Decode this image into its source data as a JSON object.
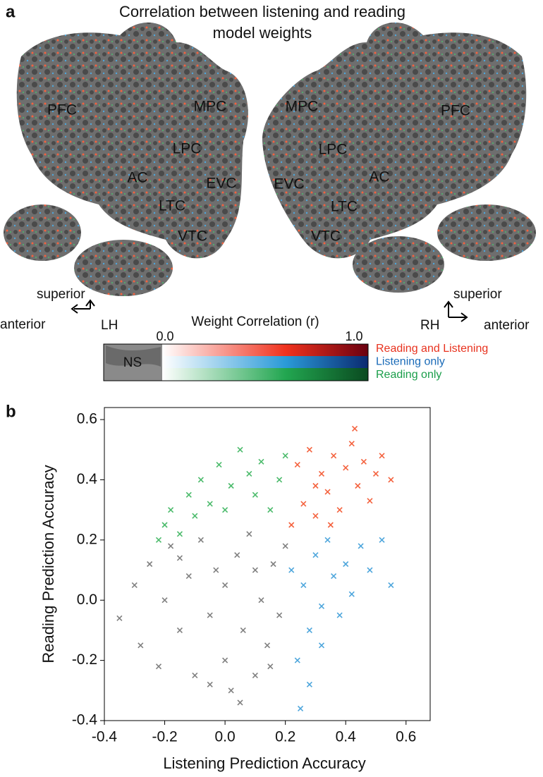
{
  "figure": {
    "panel_a": {
      "letter": "a",
      "title_lines": [
        "Correlation between listening and reading",
        "model weights"
      ],
      "left_hemisphere": {
        "regions": [
          "PFC",
          "MPC",
          "LPC",
          "AC",
          "EVC",
          "LTC",
          "VTC"
        ],
        "superior": "superior",
        "anterior": "anterior",
        "side": "LH"
      },
      "right_hemisphere": {
        "regions": [
          "MPC",
          "PFC",
          "LPC",
          "AC",
          "EVC",
          "LTC",
          "VTC"
        ],
        "superior": "superior",
        "anterior": "anterior",
        "side": "RH"
      },
      "colorbar": {
        "title": "Weight Correlation (r)",
        "min_label": "0.0",
        "max_label": "1.0",
        "ns_label": "NS",
        "legend": [
          {
            "name": "Reading and Listening",
            "color": "#e8321e"
          },
          {
            "name": "Listening only",
            "color": "#1a6bb8"
          },
          {
            "name": "Reading only",
            "color": "#1a9e4a"
          }
        ]
      }
    }
  },
  "chart_data": {
    "type": "scatter",
    "panel_label": "b",
    "x_label": "Listening Prediction Accuracy",
    "y_label": "Reading Prediction Accuracy",
    "xlim": [
      -0.4,
      0.68
    ],
    "ylim": [
      -0.4,
      0.64
    ],
    "xticks": [
      -0.4,
      -0.2,
      {
        "value": 0,
        "label": "0.0"
      },
      0.2,
      0.4,
      0.6
    ],
    "yticks": [
      -0.4,
      -0.2,
      {
        "value": 0,
        "label": "0.0"
      },
      0.2,
      0.4,
      0.6
    ],
    "series": [
      {
        "color": "#808080",
        "x": [
          -0.35,
          -0.3,
          -0.28,
          -0.25,
          -0.22,
          -0.2,
          -0.18,
          -0.15,
          -0.12,
          -0.1,
          -0.08,
          -0.05,
          -0.03,
          0.0,
          0.0,
          0.02,
          0.04,
          0.06,
          0.08,
          0.1,
          0.12,
          0.14,
          0.16,
          0.18,
          0.2,
          0.05,
          -0.05,
          0.15,
          -0.15,
          0.1
        ],
        "y": [
          -0.06,
          0.05,
          -0.15,
          0.12,
          -0.22,
          0.0,
          0.18,
          -0.1,
          0.08,
          -0.25,
          0.2,
          -0.05,
          0.1,
          -0.2,
          0.05,
          -0.3,
          0.15,
          -0.1,
          0.22,
          -0.25,
          0.0,
          -0.15,
          0.12,
          -0.05,
          0.18,
          -0.34,
          -0.28,
          -0.22,
          0.14,
          0.1
        ]
      },
      {
        "color": "#f4623e",
        "x": [
          0.22,
          0.24,
          0.26,
          0.28,
          0.3,
          0.32,
          0.34,
          0.36,
          0.38,
          0.4,
          0.42,
          0.43,
          0.44,
          0.46,
          0.48,
          0.5,
          0.52,
          0.55,
          0.3,
          0.35
        ],
        "y": [
          0.25,
          0.45,
          0.32,
          0.5,
          0.28,
          0.42,
          0.36,
          0.48,
          0.3,
          0.44,
          0.52,
          0.57,
          0.38,
          0.46,
          0.33,
          0.42,
          0.48,
          0.4,
          0.38,
          0.25
        ]
      },
      {
        "color": "#4ea6dc",
        "x": [
          0.22,
          0.24,
          0.26,
          0.28,
          0.3,
          0.32,
          0.34,
          0.36,
          0.38,
          0.4,
          0.42,
          0.45,
          0.48,
          0.52,
          0.55,
          0.25,
          0.28,
          0.32
        ],
        "y": [
          0.1,
          -0.2,
          0.05,
          -0.1,
          0.15,
          -0.02,
          0.2,
          0.08,
          -0.05,
          0.12,
          0.02,
          0.18,
          0.1,
          0.2,
          0.05,
          -0.36,
          -0.28,
          -0.15
        ]
      },
      {
        "color": "#4cbb6c",
        "x": [
          -0.2,
          -0.18,
          -0.15,
          -0.12,
          -0.1,
          -0.08,
          -0.05,
          -0.02,
          0.0,
          0.02,
          0.05,
          0.08,
          0.1,
          0.12,
          0.15,
          0.18,
          0.2,
          -0.22
        ],
        "y": [
          0.25,
          0.3,
          0.22,
          0.35,
          0.28,
          0.4,
          0.32,
          0.45,
          0.3,
          0.38,
          0.5,
          0.42,
          0.35,
          0.46,
          0.3,
          0.4,
          0.48,
          0.2
        ]
      }
    ]
  }
}
